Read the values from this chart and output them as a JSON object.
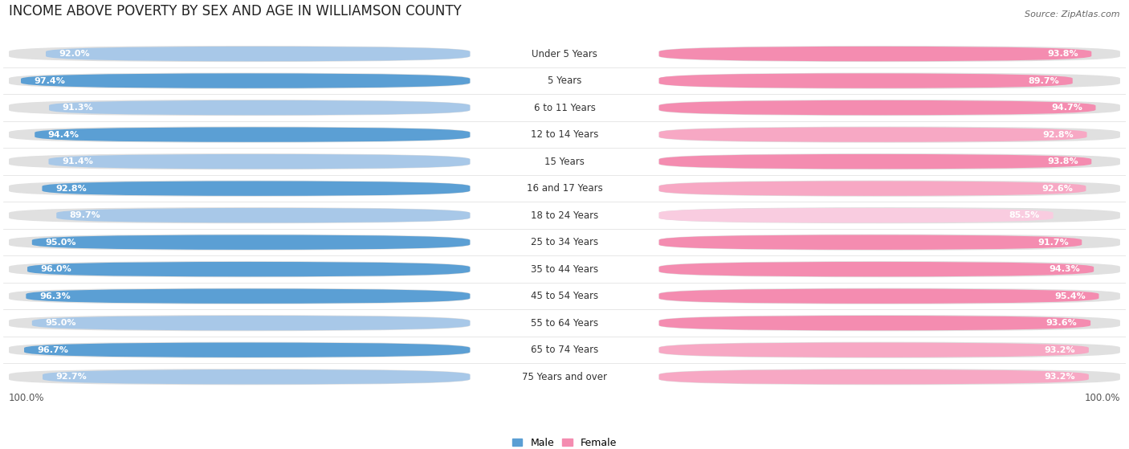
{
  "title": "INCOME ABOVE POVERTY BY SEX AND AGE IN WILLIAMSON COUNTY",
  "source": "Source: ZipAtlas.com",
  "categories": [
    "Under 5 Years",
    "5 Years",
    "6 to 11 Years",
    "12 to 14 Years",
    "15 Years",
    "16 and 17 Years",
    "18 to 24 Years",
    "25 to 34 Years",
    "35 to 44 Years",
    "45 to 54 Years",
    "55 to 64 Years",
    "65 to 74 Years",
    "75 Years and over"
  ],
  "male_values": [
    92.0,
    97.4,
    91.3,
    94.4,
    91.4,
    92.8,
    89.7,
    95.0,
    96.0,
    96.3,
    95.0,
    96.7,
    92.7
  ],
  "female_values": [
    93.8,
    89.7,
    94.7,
    92.8,
    93.8,
    92.6,
    85.5,
    91.7,
    94.3,
    95.4,
    93.6,
    93.2,
    93.2
  ],
  "male_colors": [
    "#a8c8e8",
    "#5b9fd4",
    "#a8c8e8",
    "#5b9fd4",
    "#a8c8e8",
    "#5b9fd4",
    "#a8c8e8",
    "#5b9fd4",
    "#5b9fd4",
    "#5b9fd4",
    "#a8c8e8",
    "#5b9fd4",
    "#a8c8e8"
  ],
  "female_colors": [
    "#f48cb0",
    "#f48cb0",
    "#f48cb0",
    "#f7a8c4",
    "#f48cb0",
    "#f7a8c4",
    "#f9cce0",
    "#f48cb0",
    "#f48cb0",
    "#f48cb0",
    "#f48cb0",
    "#f7a8c4",
    "#f7a8c4"
  ],
  "track_color": "#e0e0e0",
  "bg_color": "#ffffff",
  "row_sep_color": "#cccccc",
  "max_value": 100.0,
  "legend_male": "Male",
  "legend_female": "Female",
  "title_fontsize": 12,
  "source_fontsize": 8,
  "label_fontsize": 8.5,
  "value_fontsize": 8
}
